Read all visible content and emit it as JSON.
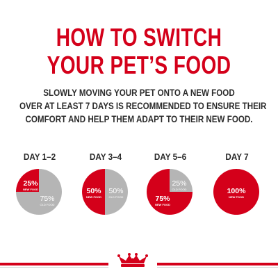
{
  "title": {
    "line1": "HOW TO SWITCH",
    "line2": "YOUR PET’S FOOD"
  },
  "intro": {
    "line1": "SLOWLY MOVING YOUR PET ONTO A NEW FOOD",
    "line2": "OVER AT LEAST 7 DAYS IS RECOMMENDED TO ENSURE THEIR",
    "line3": "COMFORT AND HELP THEM ADAPT TO THEIR NEW FOOD."
  },
  "colors": {
    "red": "#d4001a",
    "grey": "#b5b5b5",
    "text": "#2b2b2b"
  },
  "days": [
    {
      "label": "DAY 1–2",
      "new_pct": 25,
      "new_value": "25%",
      "new_label": "NEW FOOD",
      "old_value": "75%",
      "old_label": "OLD FOOD"
    },
    {
      "label": "DAY 3–4",
      "new_pct": 50,
      "new_value": "50%",
      "new_label": "NEW FOOD",
      "old_value": "50%",
      "old_label": "OLD FOOD"
    },
    {
      "label": "DAY 5–6",
      "new_pct": 75,
      "new_value": "75%",
      "new_label": "NEW FOOD",
      "old_value": "25%",
      "old_label": "OLD FOOD"
    },
    {
      "label": "DAY 7",
      "new_pct": 100,
      "new_value": "100%",
      "new_label": "NEW FOOD",
      "old_value": "",
      "old_label": ""
    }
  ],
  "logo": {
    "icon": "crown-icon"
  }
}
